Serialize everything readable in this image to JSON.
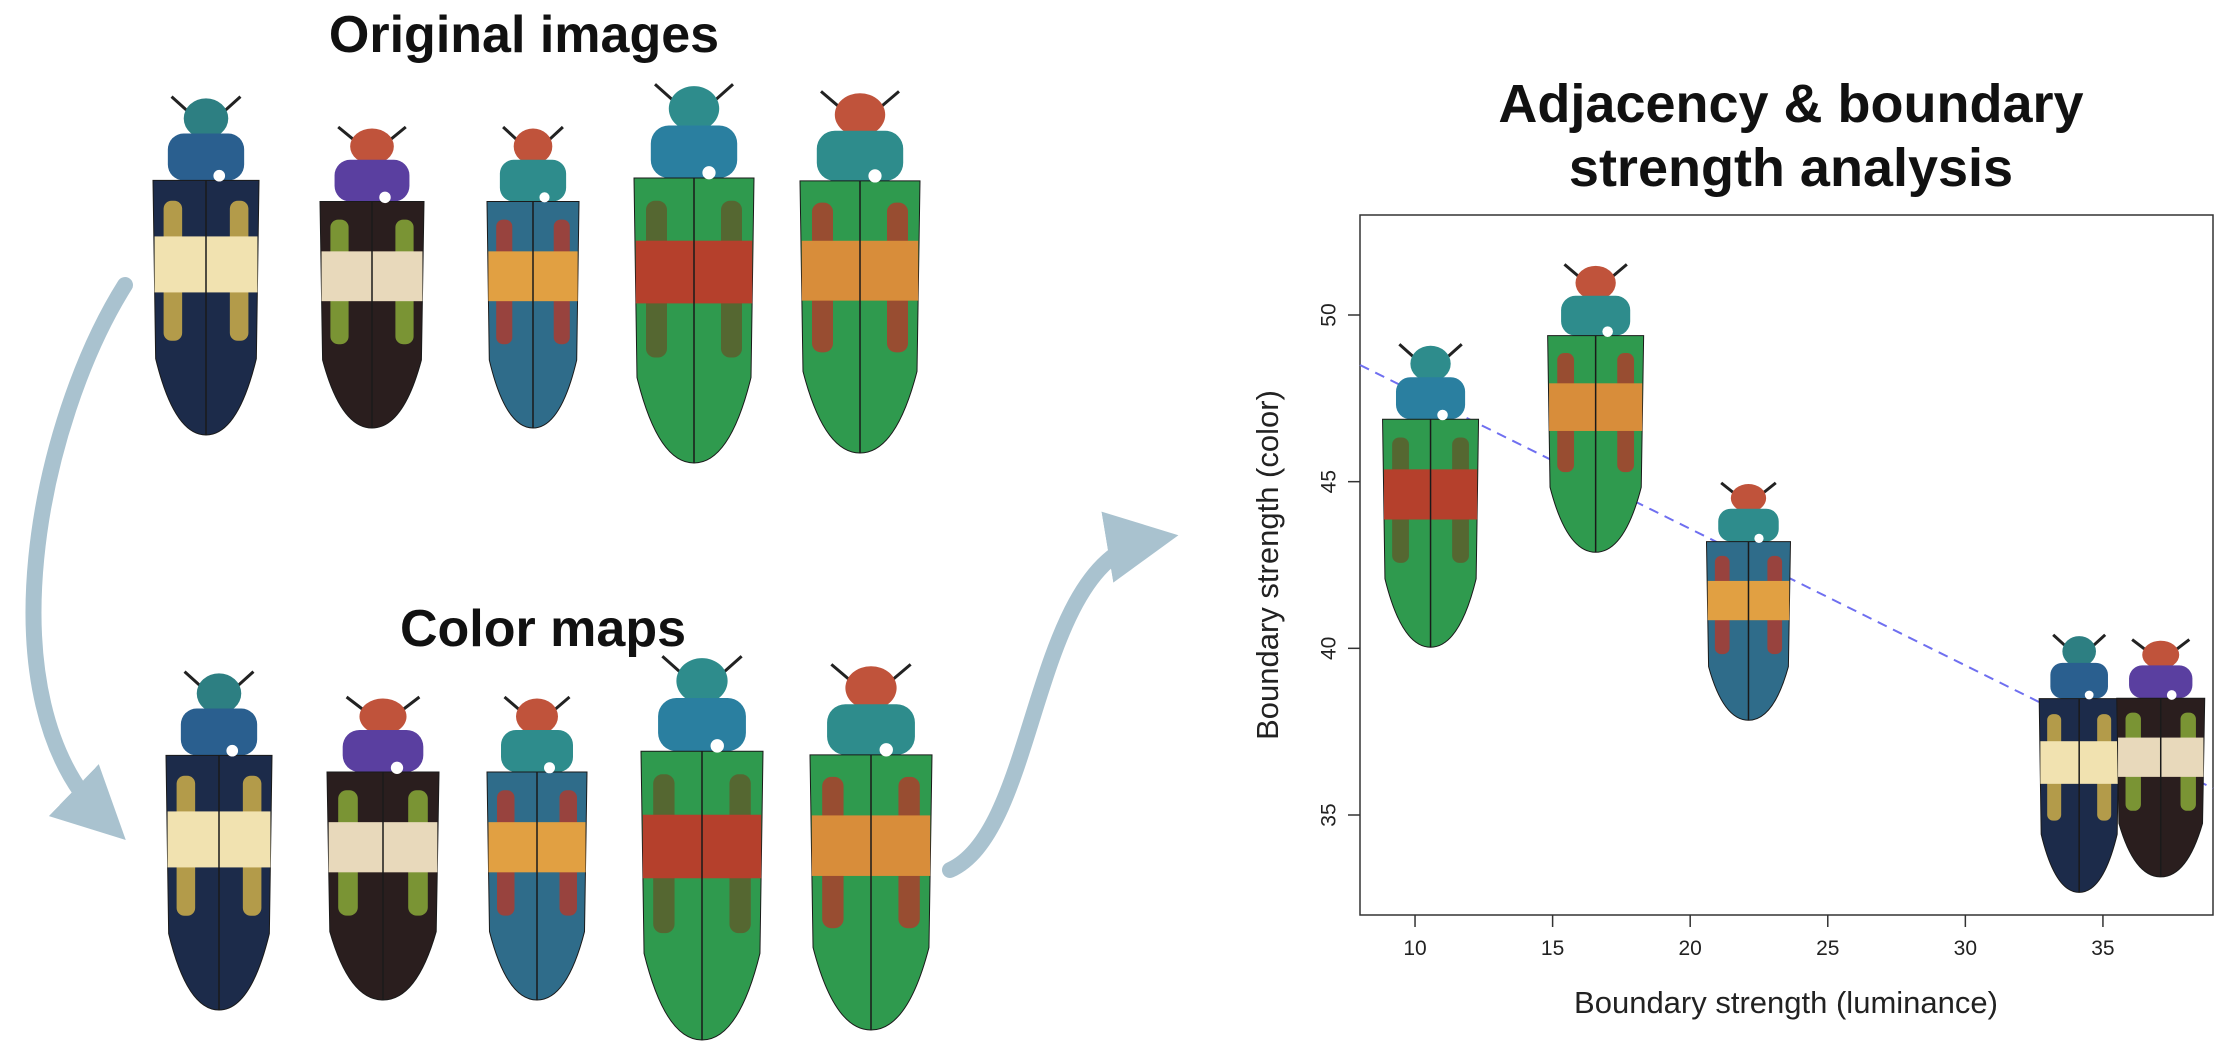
{
  "headings": {
    "original": "Original images",
    "color_maps": "Color maps",
    "analysis_line1": "Adjacency & boundary",
    "analysis_line2": "strength analysis"
  },
  "beetle_palettes": {
    "b1": {
      "body": "#1c2b4a",
      "band": "#f1e2b0",
      "head": "#2d7f82",
      "accent": "#d9b84a",
      "pron": "#2a5f8f"
    },
    "b2": {
      "body": "#2a1e1e",
      "band": "#e8d9bb",
      "head": "#c0533b",
      "accent": "#8fb13a",
      "pron": "#5a3fa0"
    },
    "b3": {
      "body": "#2f6c8a",
      "band": "#e1a042",
      "head": "#c0533b",
      "accent": "#b33a2b",
      "pron": "#2e8c8c"
    },
    "b4": {
      "body": "#2f9a4e",
      "band": "#b5402c",
      "head": "#2e8c8c",
      "accent": "#5f5a2a",
      "pron": "#2a7fa0"
    },
    "b5": {
      "body": "#2f9a4e",
      "band": "#d88d3a",
      "head": "#c0533b",
      "accent": "#b33a2b",
      "pron": "#2e8c8c"
    }
  },
  "chart_data": {
    "type": "scatter",
    "xlabel": "Boundary strength (luminance)",
    "ylabel": "Boundary strength (color)",
    "xlim": [
      8,
      39
    ],
    "ylim": [
      32,
      53
    ],
    "xticks": [
      10,
      15,
      20,
      25,
      30,
      35
    ],
    "yticks": [
      35,
      40,
      45,
      50
    ],
    "points": [
      {
        "x": 11.0,
        "y": 47.0,
        "beetle": "b4"
      },
      {
        "x": 17.0,
        "y": 49.5,
        "beetle": "b5"
      },
      {
        "x": 22.5,
        "y": 43.3,
        "beetle": "b3"
      },
      {
        "x": 34.5,
        "y": 38.6,
        "beetle": "b1"
      },
      {
        "x": 37.5,
        "y": 38.6,
        "beetle": "b2"
      }
    ],
    "trendline": {
      "x": [
        8,
        39
      ],
      "y": [
        48.5,
        35.8
      ],
      "style": "dashed",
      "color": "#6f6ff0"
    },
    "grid": false
  }
}
